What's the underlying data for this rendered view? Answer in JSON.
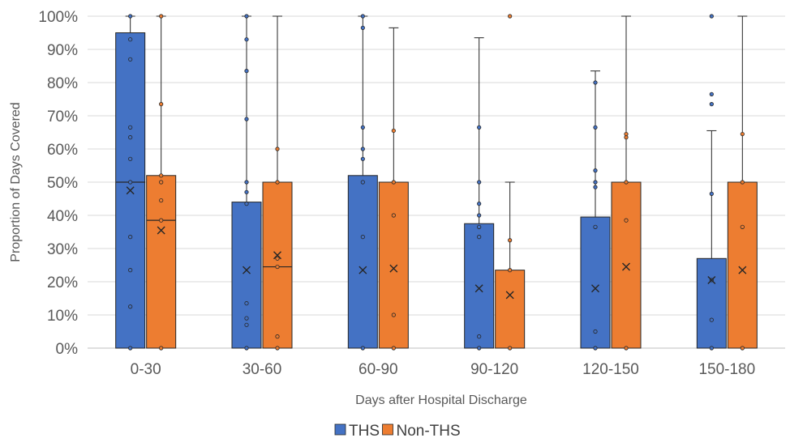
{
  "chart_data": {
    "type": "box",
    "xlabel": "Days after Hospital Discharge",
    "ylabel": "Proportion of Days Covered",
    "ylim": [
      0,
      100
    ],
    "y_ticks": [
      "0%",
      "10%",
      "20%",
      "30%",
      "40%",
      "50%",
      "60%",
      "70%",
      "80%",
      "90%",
      "100%"
    ],
    "categories": [
      "0-30",
      "30-60",
      "60-90",
      "90-120",
      "120-150",
      "150-180"
    ],
    "grid": true,
    "legend_position": "bottom",
    "series": [
      {
        "name": "THS",
        "color": "#4472C4",
        "boxes": [
          {
            "min": 0,
            "q1": 0,
            "median": 50,
            "q3": 95,
            "max": 100,
            "mean": 47.5,
            "points": [
              0,
              12.5,
              23.5,
              33.5,
              50,
              57,
              63.5,
              66.5,
              87,
              93,
              100
            ]
          },
          {
            "min": 0,
            "q1": 0,
            "median": 0,
            "q3": 44,
            "max": 100,
            "mean": 23.5,
            "points": [
              0,
              7,
              9,
              13.5,
              43.5,
              47,
              50,
              69,
              83.5,
              93,
              100
            ]
          },
          {
            "min": 0,
            "q1": 0,
            "median": 0,
            "q3": 52,
            "max": 100,
            "mean": 23.5,
            "points": [
              0,
              33.5,
              50,
              57,
              60,
              66.5,
              96.5,
              100
            ]
          },
          {
            "min": 0,
            "q1": 0,
            "median": 0,
            "q3": 37.5,
            "max": 93.5,
            "mean": 18,
            "points": [
              0,
              3.5,
              33.5,
              36.5,
              40,
              43.5,
              50,
              66.5
            ]
          },
          {
            "min": 0,
            "q1": 0,
            "median": 0,
            "q3": 39.5,
            "max": 83.5,
            "mean": 18,
            "points": [
              0,
              5,
              36.5,
              48.5,
              50,
              53.5,
              66.5,
              80
            ]
          },
          {
            "min": 0,
            "q1": 0,
            "median": 0,
            "q3": 27,
            "max": 65.5,
            "mean": 20.5,
            "points": [
              0,
              8.5,
              20.5,
              46.5,
              73.5,
              76.5,
              100
            ]
          }
        ]
      },
      {
        "name": "Non-THS",
        "color": "#ED7D31",
        "boxes": [
          {
            "min": 0,
            "q1": 0,
            "median": 38.5,
            "q3": 52,
            "max": 100,
            "mean": 35.5,
            "points": [
              0,
              38.5,
              44.5,
              50,
              52,
              73.5,
              100
            ]
          },
          {
            "min": 0,
            "q1": 0,
            "median": 24.5,
            "q3": 50,
            "max": 100,
            "mean": 28,
            "points": [
              0,
              3.5,
              24.5,
              27,
              50,
              60
            ]
          },
          {
            "min": 0,
            "q1": 0,
            "median": 0,
            "q3": 50,
            "max": 96.5,
            "mean": 24,
            "points": [
              0,
              10,
              40,
              50,
              65.5
            ]
          },
          {
            "min": 0,
            "q1": 0,
            "median": 0,
            "q3": 23.5,
            "max": 50,
            "mean": 16,
            "points": [
              0,
              23.5,
              32.5,
              100
            ]
          },
          {
            "min": 0,
            "q1": 0,
            "median": 0,
            "q3": 50,
            "max": 100,
            "mean": 24.5,
            "points": [
              0,
              38.5,
              50,
              63.5,
              64.5
            ]
          },
          {
            "min": 0,
            "q1": 0,
            "median": 0,
            "q3": 50,
            "max": 100,
            "mean": 23.5,
            "points": [
              0,
              36.5,
              50,
              64.5
            ]
          }
        ]
      }
    ]
  }
}
